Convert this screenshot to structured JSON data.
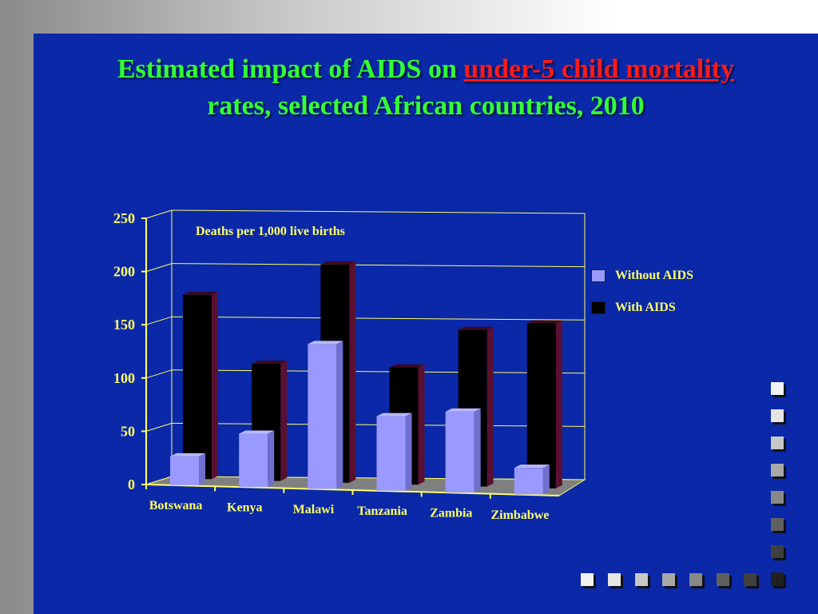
{
  "title_parts": {
    "pre": "Estimated impact of AIDS on ",
    "highlight": "under-5 child mortality",
    "post": "rates, selected African countries, 2010"
  },
  "colors": {
    "background": "#0a28a8",
    "title": "#33ff33",
    "highlight": "#ff1a1a",
    "label_text": "#ffff66",
    "without_aids": "#9999ff",
    "with_aids": "#000000",
    "with_aids_side": "#5a1030",
    "floor": "#808080"
  },
  "chart_data": {
    "type": "bar",
    "title": "Estimated impact of AIDS on under-5 child mortality rates, selected African countries, 2010",
    "annotation": "Deaths per 1,000 live births",
    "categories": [
      "Botswana",
      "Kenya",
      "Malawi",
      "Tanzania",
      "Zambia",
      "Zimbabwe"
    ],
    "series": [
      {
        "name": "Without AIDS",
        "values": [
          27,
          50,
          136,
          70,
          76,
          25
        ]
      },
      {
        "name": "With AIDS",
        "values": [
          173,
          110,
          205,
          110,
          147,
          155
        ]
      }
    ],
    "ylim": [
      0,
      250
    ],
    "yticks": [
      "0",
      "50",
      "100",
      "150",
      "200",
      "250"
    ],
    "grid": true,
    "legend_position": "right"
  },
  "decor": {
    "squares_right": [
      "#f2f2f2",
      "#e6e6e6",
      "#c8c8c8",
      "#a8a8a8",
      "#888888",
      "#606060",
      "#404040",
      "#202020"
    ],
    "squares_bottom": [
      "#f2f2f2",
      "#e6e6e6",
      "#c8c8c8",
      "#a8a8a8",
      "#888888",
      "#606060",
      "#404040",
      "#202020"
    ]
  }
}
